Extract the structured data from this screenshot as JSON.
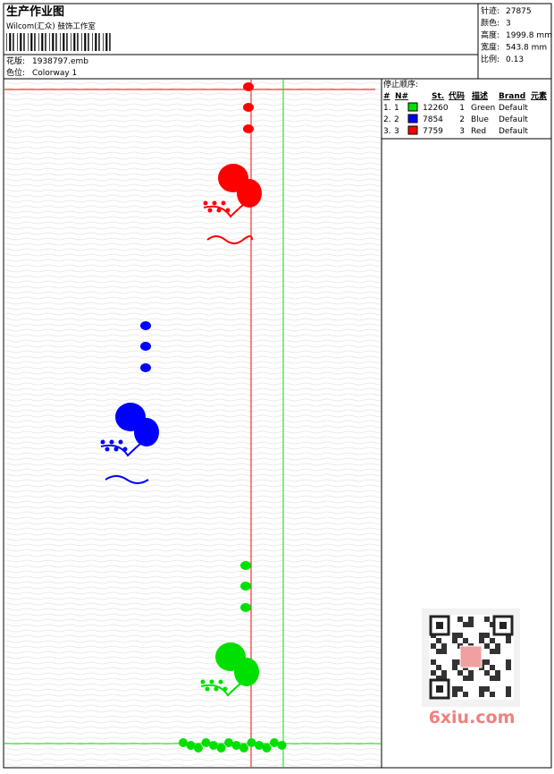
{
  "header": {
    "title": "生产作业图",
    "company": "Wilcom(汇众) 鼓饰工作室",
    "design_label": "花版:",
    "design_file": "1938797.emb",
    "colorway_label": "色位:",
    "colorway": "Colorway 1"
  },
  "stats": [
    {
      "label": "针迹:",
      "value": "27875"
    },
    {
      "label": "颜色:",
      "value": "3"
    },
    {
      "label": "高度:",
      "value": "1999.8 mm"
    },
    {
      "label": "宽度:",
      "value": "543.8 mm"
    },
    {
      "label": "比例:",
      "value": "0.13"
    }
  ],
  "table": {
    "title": "停止顺序:",
    "columns": [
      "#",
      "N#",
      "St.",
      "代码",
      "描述",
      "Brand",
      "元素"
    ],
    "rows": [
      {
        "index": "1.",
        "n": "1",
        "color": "#00e000",
        "stitches": "12260",
        "code": "1",
        "description": "Green",
        "brand": "Default"
      },
      {
        "index": "2.",
        "n": "2",
        "color": "#0000ff",
        "stitches": "7854",
        "code": "2",
        "description": "Blue",
        "brand": "Default"
      },
      {
        "index": "3.",
        "n": "3",
        "color": "#ff0000",
        "stitches": "7759",
        "code": "3",
        "description": "Red",
        "brand": "Default"
      }
    ]
  },
  "watermark": "6xiu.com"
}
